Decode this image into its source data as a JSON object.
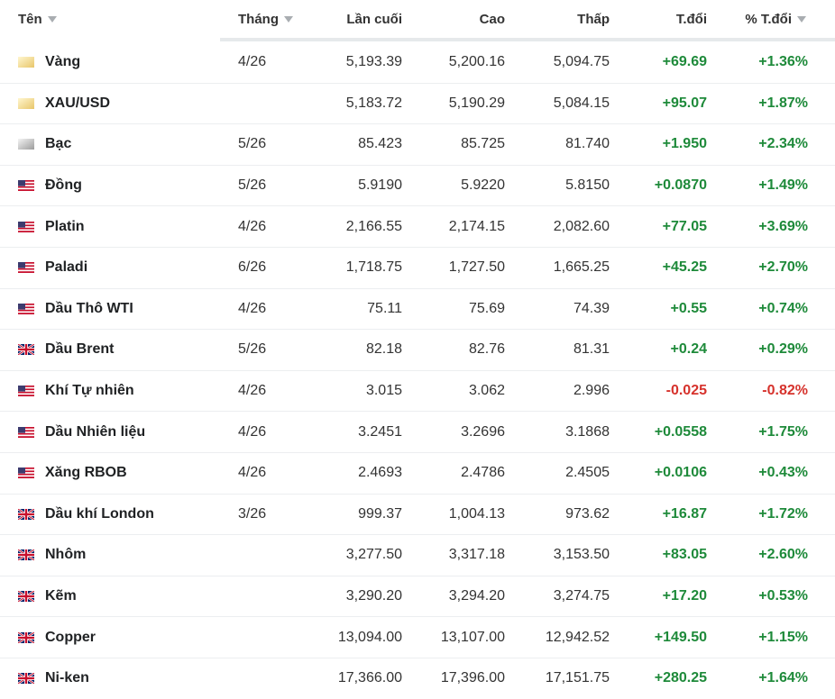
{
  "headers": {
    "name": "Tên",
    "month": "Tháng",
    "last": "Lần cuối",
    "high": "Cao",
    "low": "Thấp",
    "change": "T.đổi",
    "pct_change": "% T.đổi"
  },
  "rows": [
    {
      "flag": "gold-icon",
      "name": "Vàng",
      "month": "4/26",
      "last": "5,193.39",
      "high": "5,200.16",
      "low": "5,094.75",
      "change": "+69.69",
      "pct": "+1.36%",
      "dir": "pos"
    },
    {
      "flag": "gold-icon",
      "name": "XAU/USD",
      "month": "",
      "last": "5,183.72",
      "high": "5,190.29",
      "low": "5,084.15",
      "change": "+95.07",
      "pct": "+1.87%",
      "dir": "pos"
    },
    {
      "flag": "silver-icon",
      "name": "Bạc",
      "month": "5/26",
      "last": "85.423",
      "high": "85.725",
      "low": "81.740",
      "change": "+1.950",
      "pct": "+2.34%",
      "dir": "pos"
    },
    {
      "flag": "us-flag-icon",
      "name": "Đồng",
      "month": "5/26",
      "last": "5.9190",
      "high": "5.9220",
      "low": "5.8150",
      "change": "+0.0870",
      "pct": "+1.49%",
      "dir": "pos"
    },
    {
      "flag": "us-flag-icon",
      "name": "Platin",
      "month": "4/26",
      "last": "2,166.55",
      "high": "2,174.15",
      "low": "2,082.60",
      "change": "+77.05",
      "pct": "+3.69%",
      "dir": "pos"
    },
    {
      "flag": "us-flag-icon",
      "name": "Paladi",
      "month": "6/26",
      "last": "1,718.75",
      "high": "1,727.50",
      "low": "1,665.25",
      "change": "+45.25",
      "pct": "+2.70%",
      "dir": "pos"
    },
    {
      "flag": "us-flag-icon",
      "name": "Dầu Thô WTI",
      "month": "4/26",
      "last": "75.11",
      "high": "75.69",
      "low": "74.39",
      "change": "+0.55",
      "pct": "+0.74%",
      "dir": "pos"
    },
    {
      "flag": "uk-flag-icon",
      "name": "Dầu Brent",
      "month": "5/26",
      "last": "82.18",
      "high": "82.76",
      "low": "81.31",
      "change": "+0.24",
      "pct": "+0.29%",
      "dir": "pos"
    },
    {
      "flag": "us-flag-icon",
      "name": "Khí Tự nhiên",
      "month": "4/26",
      "last": "3.015",
      "high": "3.062",
      "low": "2.996",
      "change": "-0.025",
      "pct": "-0.82%",
      "dir": "neg"
    },
    {
      "flag": "us-flag-icon",
      "name": "Dầu Nhiên liệu",
      "month": "4/26",
      "last": "3.2451",
      "high": "3.2696",
      "low": "3.1868",
      "change": "+0.0558",
      "pct": "+1.75%",
      "dir": "pos"
    },
    {
      "flag": "us-flag-icon",
      "name": "Xăng RBOB",
      "month": "4/26",
      "last": "2.4693",
      "high": "2.4786",
      "low": "2.4505",
      "change": "+0.0106",
      "pct": "+0.43%",
      "dir": "pos"
    },
    {
      "flag": "uk-flag-icon",
      "name": "Dầu khí London",
      "month": "3/26",
      "last": "999.37",
      "high": "1,004.13",
      "low": "973.62",
      "change": "+16.87",
      "pct": "+1.72%",
      "dir": "pos"
    },
    {
      "flag": "uk-flag-icon",
      "name": "Nhôm",
      "month": "",
      "last": "3,277.50",
      "high": "3,317.18",
      "low": "3,153.50",
      "change": "+83.05",
      "pct": "+2.60%",
      "dir": "pos"
    },
    {
      "flag": "uk-flag-icon",
      "name": "Kẽm",
      "month": "",
      "last": "3,290.20",
      "high": "3,294.20",
      "low": "3,274.75",
      "change": "+17.20",
      "pct": "+0.53%",
      "dir": "pos"
    },
    {
      "flag": "uk-flag-icon",
      "name": "Copper",
      "month": "",
      "last": "13,094.00",
      "high": "13,107.00",
      "low": "12,942.52",
      "change": "+149.50",
      "pct": "+1.15%",
      "dir": "pos"
    },
    {
      "flag": "uk-flag-icon",
      "name": "Ni-ken",
      "month": "",
      "last": "17,366.00",
      "high": "17,396.00",
      "low": "17,151.75",
      "change": "+280.25",
      "pct": "+1.64%",
      "dir": "pos"
    }
  ]
}
